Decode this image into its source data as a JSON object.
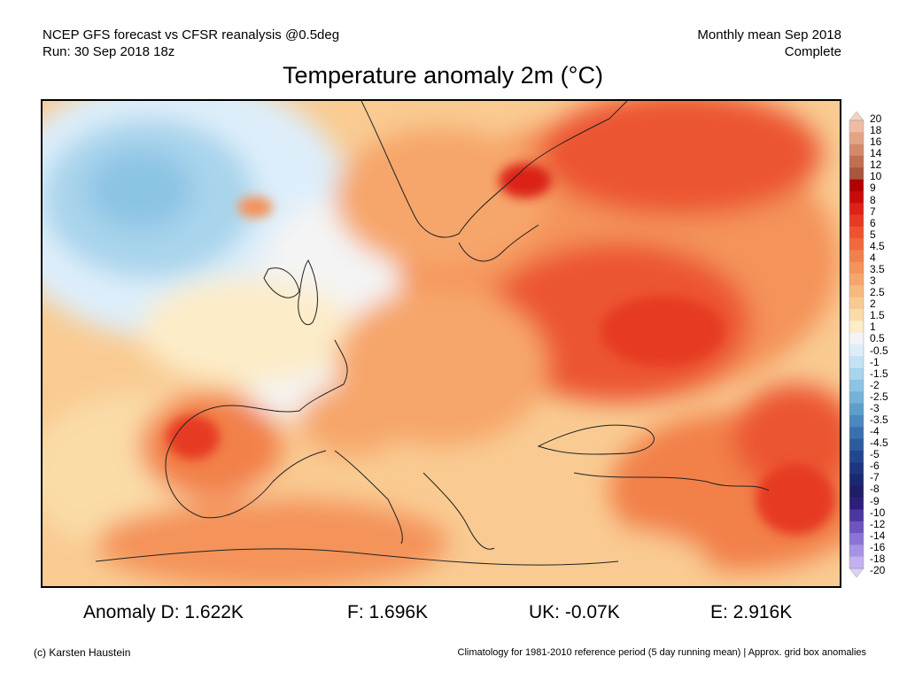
{
  "header": {
    "left_line1": "NCEP GFS forecast vs CFSR reanalysis @0.5deg",
    "left_line2": "Run: 30 Sep 2018 18z",
    "right_line1": "Monthly mean Sep 2018",
    "right_line2": "Complete"
  },
  "title": "Temperature anomaly 2m (°C)",
  "legend": {
    "labels": [
      "20",
      "18",
      "16",
      "14",
      "12",
      "10",
      "9",
      "8",
      "7",
      "6",
      "5",
      "4.5",
      "4",
      "3.5",
      "3",
      "2.5",
      "2",
      "1.5",
      "1",
      "0.5",
      "-0.5",
      "-1",
      "-1.5",
      "-2",
      "-2.5",
      "-3",
      "-3.5",
      "-4",
      "-4.5",
      "-5",
      "-6",
      "-7",
      "-8",
      "-9",
      "-10",
      "-12",
      "-14",
      "-16",
      "-18",
      "-20"
    ],
    "colors": [
      "#f6d2c0",
      "#eebca4",
      "#e3a486",
      "#d38a6a",
      "#c06f52",
      "#a8563e",
      "#b00000",
      "#c80c0c",
      "#dc2218",
      "#e63a22",
      "#ec5430",
      "#f06a3c",
      "#f2804a",
      "#f4935a",
      "#f6a66a",
      "#f8b97e",
      "#f9cb92",
      "#fadca8",
      "#fcecc8",
      "#f4f4f4",
      "#ddeefa",
      "#c4e2f4",
      "#a8d4ec",
      "#8cc4e4",
      "#74b2d8",
      "#5c9ecc",
      "#4a88be",
      "#3a70ae",
      "#2e5a9e",
      "#24468e",
      "#1e3680",
      "#1a2870",
      "#201c66",
      "#2c1e7a",
      "#4c36a0",
      "#6e54c0",
      "#8c74d6",
      "#a892e4",
      "#c4b0ee",
      "#ddd0f6"
    ]
  },
  "stats": {
    "d": "Anomaly D: 1.622K",
    "f": "F: 1.696K",
    "uk": "UK: -0.07K",
    "e": "E: 2.916K"
  },
  "footer": {
    "left": "(c) Karsten Haustein",
    "right": "Climatology for 1981-2010 reference period (5 day running mean) | Approx. grid box anomalies"
  }
}
